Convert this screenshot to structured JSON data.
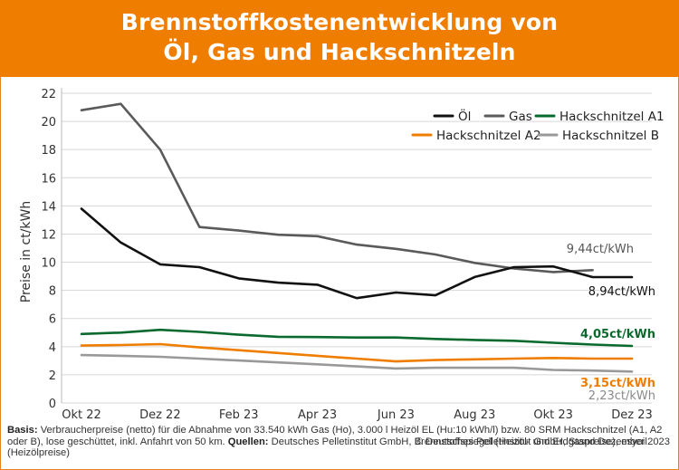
{
  "header": {
    "title_line1": "Brennstoffkostenentwicklung von",
    "title_line2": "Öl, Gas und Hackschnitzeln"
  },
  "colors": {
    "header_bg": "#ef7d00",
    "oel": "#111111",
    "gas": "#5a5a5a",
    "hackschnitzel_a1": "#0a6a2e",
    "hackschnitzel_a2": "#ef7d00",
    "hackschnitzel_b": "#999999"
  },
  "chart_data": {
    "type": "line",
    "ylabel": "Preise in ct/kWh",
    "xlabel": "",
    "ylim": [
      0,
      22
    ],
    "yticks": [
      0,
      2,
      4,
      6,
      8,
      10,
      12,
      14,
      16,
      18,
      20,
      22
    ],
    "x": [
      "Okt 22",
      "Nov 22",
      "Dez 22",
      "Jan 23",
      "Feb 23",
      "Mär 23",
      "Apr 23",
      "Mai 23",
      "Jun 23",
      "Jul 23",
      "Aug 23",
      "Sep 23",
      "Okt 23",
      "Nov 23",
      "Dez 23"
    ],
    "xtick_labels": [
      "Okt 22",
      "Dez 22",
      "Feb 23",
      "Apr 23",
      "Jun 23",
      "Aug 23",
      "Okt 23",
      "Dez 23"
    ],
    "grid": "horizontal",
    "legend_position": "top-right",
    "series": [
      {
        "name": "Öl",
        "color_key": "oel",
        "values": [
          13.8,
          11.4,
          9.85,
          9.65,
          8.85,
          8.55,
          8.4,
          7.45,
          7.85,
          7.65,
          8.95,
          9.65,
          9.7,
          8.94,
          8.94
        ]
      },
      {
        "name": "Gas",
        "color_key": "gas",
        "values": [
          20.8,
          21.25,
          18.0,
          12.5,
          12.25,
          11.95,
          11.85,
          11.25,
          10.95,
          10.55,
          9.95,
          9.55,
          9.3,
          9.44,
          null
        ]
      },
      {
        "name": "Hackschnitzel A1",
        "color_key": "hackschnitzel_a1",
        "values": [
          4.9,
          5.0,
          5.2,
          5.05,
          4.85,
          4.7,
          4.68,
          4.65,
          4.65,
          4.55,
          4.48,
          4.42,
          4.28,
          4.15,
          4.05
        ]
      },
      {
        "name": "Hackschnitzel A2",
        "color_key": "hackschnitzel_a2",
        "values": [
          4.08,
          4.12,
          4.18,
          3.95,
          3.75,
          3.55,
          3.35,
          3.15,
          2.95,
          3.05,
          3.1,
          3.15,
          3.2,
          3.15,
          3.15
        ]
      },
      {
        "name": "Hackschnitzel B",
        "color_key": "hackschnitzel_b",
        "values": [
          3.4,
          3.35,
          3.28,
          3.15,
          3.02,
          2.88,
          2.75,
          2.6,
          2.45,
          2.5,
          2.5,
          2.5,
          2.35,
          2.3,
          2.23
        ]
      }
    ],
    "annotations": [
      {
        "text": "9,44ct/kWh",
        "series": "Gas"
      },
      {
        "text": "8,94ct/kWh",
        "series": "Öl"
      },
      {
        "text": "4,05ct/kWh",
        "series": "Hackschnitzel A1"
      },
      {
        "text": "3,15ct/kWh",
        "series": "Hackschnitzel A2"
      },
      {
        "text": "2,23ct/kWh",
        "series": "Hackschnitzel B"
      }
    ]
  },
  "footer": {
    "basis_label": "Basis:",
    "basis_text": " Verbraucherpreise (netto) für die Abnahme von 33.540 kWh Gas (Ho), 3.000 l Heizöl EL (Hu:10 kWh/l) bzw. 80 SRM Hackschnitzel (A1, A2 oder B), lose geschüttet, inkl. Anfahrt von 50 km. ",
    "sources_label": "Quellen:",
    "sources_text": " Deutsches Pelletinstitut GmbH, Brennstoffspiegel (Heizöl- und Erdgaspreise), esyoil (Heizölpreise)",
    "copyright": "© Deutsches Pelletinstitut GmbH, Stand Dezember 2023"
  }
}
